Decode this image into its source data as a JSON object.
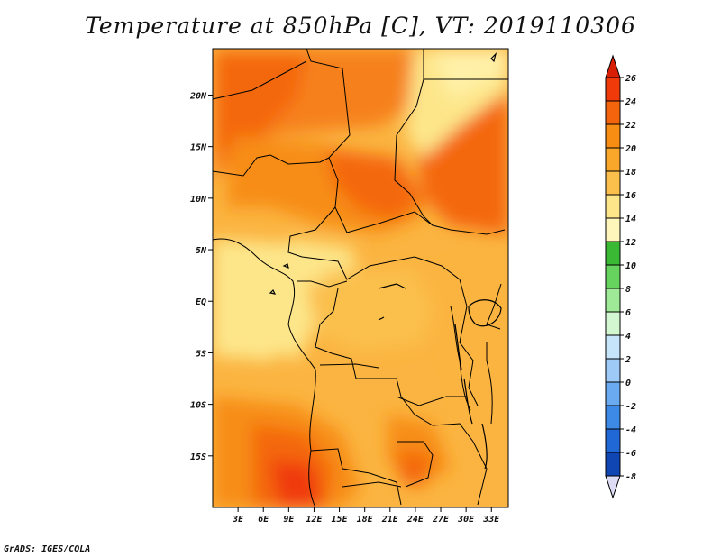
{
  "title": "Temperature at 850hPa [C], VT: 2019110306",
  "credit": "GrADS: IGES/COLA",
  "map": {
    "lon_range": [
      0,
      35
    ],
    "lat_range": [
      -20,
      24.5
    ],
    "lon_ticks": [
      {
        "v": 3,
        "t": "3E"
      },
      {
        "v": 6,
        "t": "6E"
      },
      {
        "v": 9,
        "t": "9E"
      },
      {
        "v": 12,
        "t": "12E"
      },
      {
        "v": 15,
        "t": "15E"
      },
      {
        "v": 18,
        "t": "18E"
      },
      {
        "v": 21,
        "t": "21E"
      },
      {
        "v": 24,
        "t": "24E"
      },
      {
        "v": 27,
        "t": "27E"
      },
      {
        "v": 30,
        "t": "30E"
      },
      {
        "v": 33,
        "t": "33E"
      }
    ],
    "lat_ticks": [
      {
        "v": 20,
        "t": "20N"
      },
      {
        "v": 15,
        "t": "15N"
      },
      {
        "v": 10,
        "t": "10N"
      },
      {
        "v": 5,
        "t": "5N"
      },
      {
        "v": 0,
        "t": "EQ"
      },
      {
        "v": -5,
        "t": "5S"
      },
      {
        "v": -10,
        "t": "10S"
      },
      {
        "v": -15,
        "t": "15S"
      }
    ]
  },
  "colorbar": {
    "labels": [
      "26",
      "24",
      "22",
      "20",
      "18",
      "16",
      "14",
      "12",
      "10",
      "8",
      "6",
      "4",
      "2",
      "0",
      "-2",
      "-4",
      "-6",
      "-8"
    ],
    "colors": [
      "#f03a0a",
      "#f4640d",
      "#f78d12",
      "#f9a72a",
      "#fbc04c",
      "#fde68a",
      "#fff6bb",
      "#3ab935",
      "#66d35e",
      "#9eea96",
      "#d3f8d1",
      "#c6e5fb",
      "#9dcaf6",
      "#6aaaf0",
      "#3c8ae6",
      "#1f68d6",
      "#0f46b3",
      "#06207a"
    ],
    "top_color": "#d81e04",
    "bottom_color": "#dddcf4"
  }
}
